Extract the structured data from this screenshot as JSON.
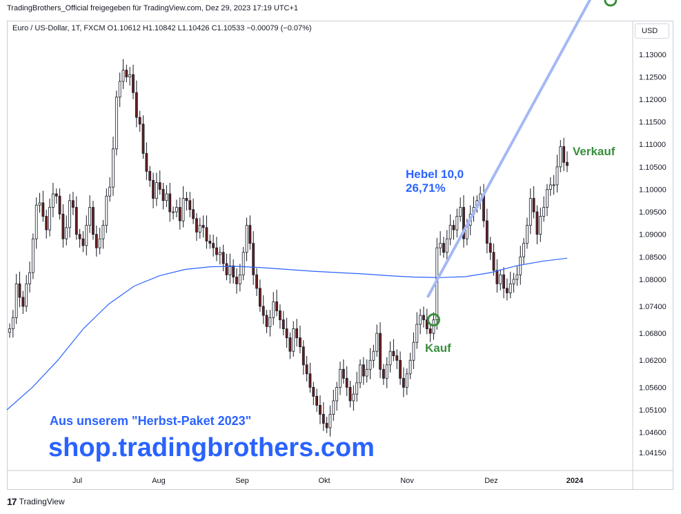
{
  "header": {
    "published_line": "TradingBrothers_Official freigegeben für TradingView.com, Dez 29, 2023 17:19 UTC+1",
    "legend": "Euro / US-Dollar, 1T, FXCM  O1.10612  H1.10842  L1.10426  C1.10533  −0.00079 (−0.07%)",
    "currency": "USD"
  },
  "footer": {
    "brand": "TradingView",
    "logo_text": "17"
  },
  "promo": {
    "line1": "Aus unserem \"Herbst-Paket 2023\"",
    "line2": "shop.tradingbrothers.com"
  },
  "annotations": {
    "lever_line1": "Hebel 10,0",
    "lever_line2": "26,71%",
    "buy": "Kauf",
    "sell": "Verkauf"
  },
  "colors": {
    "up": "#ffffff",
    "down": "#6b1f1f",
    "wick": "#131722",
    "ma": "#2962ff",
    "arrow": "#a5b8f5",
    "marker": "#388e3c"
  },
  "chart_data": {
    "type": "candlestick",
    "title": "",
    "y_ticks": [
      "1.13000",
      "1.12500",
      "1.12000",
      "1.11500",
      "1.11000",
      "1.10500",
      "1.10000",
      "1.09500",
      "1.09000",
      "1.08500",
      "1.08000",
      "1.07400",
      "1.06800",
      "1.06200",
      "1.05600",
      "1.05100",
      "1.04600",
      "1.04150"
    ],
    "x_ticks": [
      "Jul",
      "Aug",
      "Sep",
      "Okt",
      "Nov",
      "Dez",
      "2024"
    ],
    "ylim": [
      1.0375,
      1.1335
    ],
    "close_values": [
      1.069,
      1.0715,
      1.079,
      1.076,
      1.074,
      1.079,
      1.0815,
      1.089,
      1.0965,
      1.097,
      1.094,
      1.091,
      1.096,
      1.099,
      1.0985,
      1.0945,
      1.089,
      1.0915,
      1.0975,
      1.096,
      1.09,
      1.089,
      1.0875,
      1.092,
      1.096,
      1.09,
      1.087,
      1.089,
      1.092,
      1.0985,
      1.1005,
      1.109,
      1.1205,
      1.124,
      1.1265,
      1.125,
      1.1255,
      1.1215,
      1.116,
      1.1145,
      1.108,
      1.104,
      1.102,
      1.098,
      1.1015,
      1.1,
      1.0975,
      1.099,
      1.095,
      1.095,
      1.096,
      1.093,
      1.098,
      1.0975,
      1.0955,
      1.0935,
      1.0905,
      1.092,
      1.0915,
      1.0885,
      1.088,
      1.087,
      1.0855,
      1.086,
      1.0835,
      1.081,
      1.083,
      1.0805,
      1.079,
      1.081,
      1.086,
      1.092,
      1.088,
      1.081,
      1.078,
      1.074,
      1.072,
      1.0695,
      1.0715,
      1.075,
      1.073,
      1.071,
      1.069,
      1.067,
      1.064,
      1.069,
      1.067,
      1.065,
      1.061,
      1.059,
      1.056,
      1.054,
      1.052,
      1.05,
      1.048,
      1.047,
      1.05,
      1.053,
      1.056,
      1.06,
      1.058,
      1.056,
      1.053,
      1.0545,
      1.057,
      1.061,
      1.0585,
      1.06,
      1.062,
      1.064,
      1.068,
      1.06,
      1.058,
      1.061,
      1.064,
      1.063,
      1.062,
      1.058,
      1.056,
      1.059,
      1.062,
      1.066,
      1.07,
      1.072,
      1.071,
      1.069,
      1.068,
      1.071,
      1.087,
      1.088,
      1.086,
      1.089,
      1.092,
      1.091,
      1.094,
      1.096,
      1.089,
      1.092,
      1.0945,
      1.096,
      1.0975,
      1.099,
      1.093,
      1.088,
      1.086,
      1.082,
      1.079,
      1.081,
      1.078,
      1.077,
      1.079,
      1.08,
      1.081,
      1.085,
      1.088,
      1.092,
      1.098,
      1.095,
      1.09,
      1.094,
      1.096,
      1.1,
      1.101,
      1.101,
      1.105,
      1.1095,
      1.106,
      1.1053
    ],
    "moving_average": {
      "x_start": 1,
      "values": [
        1.051,
        1.056,
        1.062,
        1.069,
        1.0745,
        1.0785,
        1.0808,
        1.0822,
        1.0828,
        1.0829,
        1.0826,
        1.0822,
        1.0818,
        1.0815,
        1.0812,
        1.0808,
        1.0805,
        1.0804,
        1.0806,
        1.0815,
        1.083,
        1.084,
        1.0847
      ]
    },
    "markers": {
      "buy_index": 127,
      "sell_index": 180
    }
  }
}
